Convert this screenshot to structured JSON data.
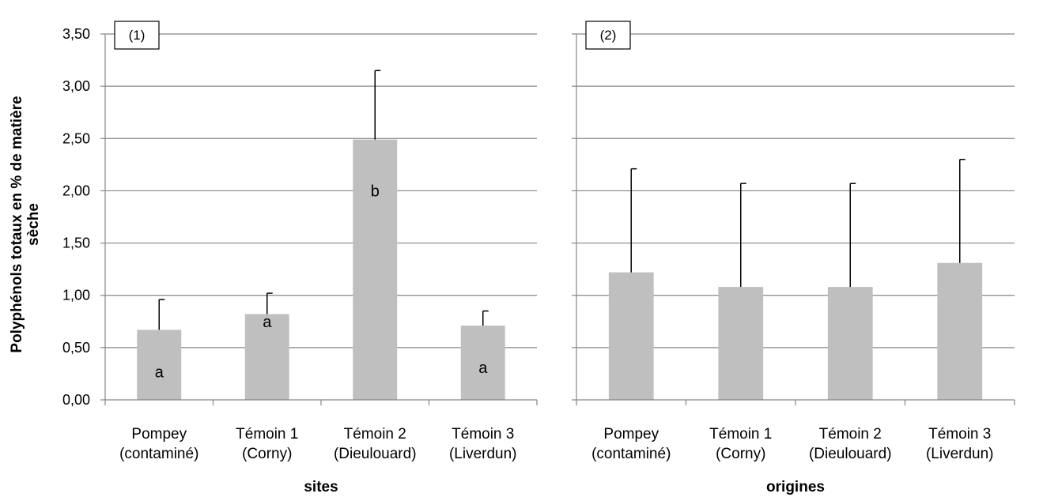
{
  "chart_data": {
    "type": "bar",
    "ylabel_lines": [
      "Polyphénols totaux en % de matière",
      "sèche"
    ],
    "ylim": [
      0,
      3.5
    ],
    "yticks": [
      "0,00",
      "0,50",
      "1,00",
      "1,50",
      "2,00",
      "2,50",
      "3,00",
      "3,50"
    ],
    "yticks_values": [
      0,
      0.5,
      1,
      1.5,
      2,
      2.5,
      3,
      3.5
    ],
    "grid": true,
    "bar_color": "#bfbfbf",
    "panels": [
      {
        "tag": "(1)",
        "xlabel": "sites",
        "categories": [
          {
            "line1": "Pompey",
            "line2": "(contaminé)"
          },
          {
            "line1": "Témoin 1",
            "line2": "(Corny)"
          },
          {
            "line1": "Témoin 2",
            "line2": "(Dieulouard)"
          },
          {
            "line1": "Témoin 3",
            "line2": "(Liverdun)"
          }
        ],
        "values": [
          0.67,
          0.82,
          2.49,
          0.71
        ],
        "errors": [
          0.29,
          0.2,
          0.66,
          0.14
        ],
        "significance": [
          "a",
          "a",
          "b",
          "a"
        ]
      },
      {
        "tag": "(2)",
        "xlabel": "origines",
        "categories": [
          {
            "line1": "Pompey",
            "line2": "(contaminé)"
          },
          {
            "line1": "Témoin 1",
            "line2": "(Corny)"
          },
          {
            "line1": "Témoin 2",
            "line2": "(Dieulouard)"
          },
          {
            "line1": "Témoin 3",
            "line2": "(Liverdun)"
          }
        ],
        "values": [
          1.22,
          1.08,
          1.08,
          1.31
        ],
        "errors": [
          0.99,
          0.99,
          0.99,
          0.99
        ],
        "significance": [
          "",
          "",
          "",
          ""
        ]
      }
    ]
  }
}
